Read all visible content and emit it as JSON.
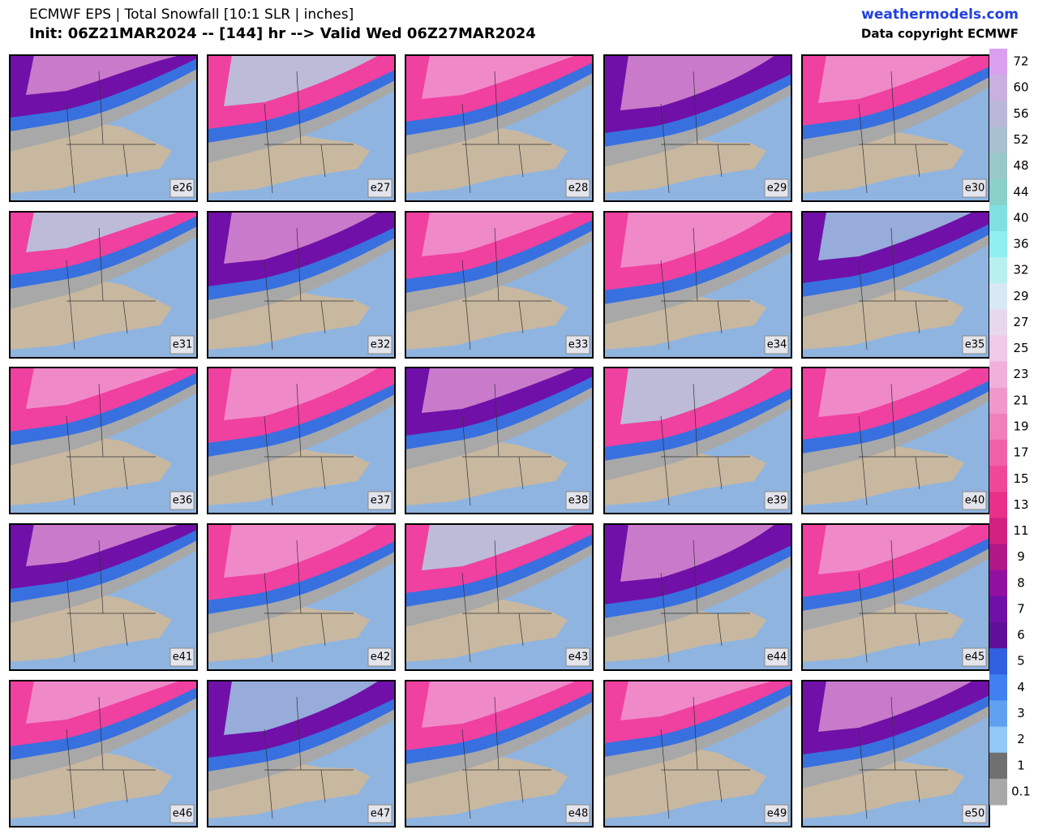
{
  "header": {
    "title": "ECMWF EPS | Total Snowfall [10:1 SLR | inches]",
    "subtitle": "Init: 06Z21MAR2024 -- [144] hr --> Valid Wed 06Z27MAR2024",
    "site": "weathermodels.com",
    "copyright": "Data copyright ECMWF"
  },
  "panels": [
    {
      "label": "e26"
    },
    {
      "label": "e27"
    },
    {
      "label": "e28"
    },
    {
      "label": "e29"
    },
    {
      "label": "e30"
    },
    {
      "label": "e31"
    },
    {
      "label": "e32"
    },
    {
      "label": "e33"
    },
    {
      "label": "e34"
    },
    {
      "label": "e35"
    },
    {
      "label": "e36"
    },
    {
      "label": "e37"
    },
    {
      "label": "e38"
    },
    {
      "label": "e39"
    },
    {
      "label": "e40"
    },
    {
      "label": "e41"
    },
    {
      "label": "e42"
    },
    {
      "label": "e43"
    },
    {
      "label": "e44"
    },
    {
      "label": "e45"
    },
    {
      "label": "e46"
    },
    {
      "label": "e47"
    },
    {
      "label": "e48"
    },
    {
      "label": "e49"
    },
    {
      "label": "e50"
    }
  ],
  "colorbar": {
    "labels": [
      72,
      60,
      56,
      52,
      48,
      44,
      40,
      36,
      32,
      29,
      27,
      25,
      23,
      21,
      19,
      17,
      15,
      13,
      11,
      9,
      8,
      7,
      6,
      5,
      4,
      3,
      2,
      1,
      0.1
    ],
    "colors": [
      "#d9a0f0",
      "#c9b0e0",
      "#b9b8d8",
      "#a8c0d0",
      "#98c8c8",
      "#88d0c8",
      "#80e0e0",
      "#90f0f0",
      "#b8f0f0",
      "#d8e8f4",
      "#e8d8ee",
      "#f0c8e8",
      "#f0b0dc",
      "#f098cc",
      "#f080bc",
      "#f060a8",
      "#f04898",
      "#e83088",
      "#d02080",
      "#b01888",
      "#9010a0",
      "#7010a8",
      "#601098",
      "#3060e0",
      "#4080f0",
      "#60a0f0",
      "#90c8f8",
      "#707070",
      "#a8a8a8"
    ]
  }
}
